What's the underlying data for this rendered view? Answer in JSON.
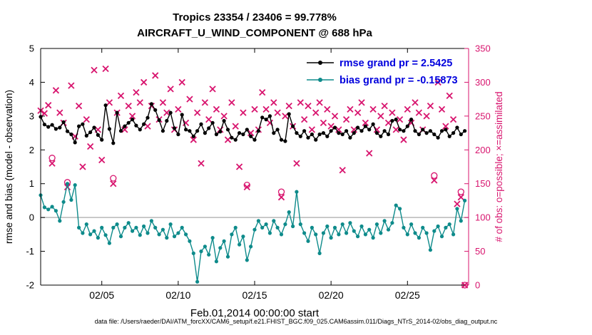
{
  "footer": {
    "caption": "data file: /Users/raeder/DAI/ATM_forcXX/CAM6_setup/f.e21.FHIST_BGC.f09_025.CAM6assim.011/Diags_NTrS_2014-02/obs_diag_output.nc"
  },
  "chart_data": {
    "type": "line",
    "title": "Tropics 23354 / 23406 = 99.778%",
    "subtitle": "AIRCRAFT_U_WIND_COMPONENT @ 688 hPa",
    "xlabel": "Feb.01,2014 00:00:00 start",
    "ylabel_left": "rmse and bias (model - observation)",
    "ylabel_right": "# of obs: o=possible; ×=assimilated",
    "xlim": [
      1,
      29
    ],
    "ylim_left": [
      -2,
      5
    ],
    "ylim_right": [
      0,
      350
    ],
    "yticks_left": [
      -2,
      -1,
      0,
      1,
      2,
      3,
      4,
      5
    ],
    "yticks_right": [
      0,
      50,
      100,
      150,
      200,
      250,
      300,
      350
    ],
    "xticks": [
      {
        "value": 5,
        "label": "02/05"
      },
      {
        "value": 10,
        "label": "02/10"
      },
      {
        "value": 15,
        "label": "02/15"
      },
      {
        "value": 20,
        "label": "02/20"
      },
      {
        "value": 25,
        "label": "02/25"
      }
    ],
    "x_start": 1,
    "x_step": 0.25,
    "n_points": 112,
    "zero_line": 0,
    "grid": false,
    "legend_position": "top-right-inside",
    "colors": {
      "rmse": "#000000",
      "bias": "#0e8b8b",
      "obs": "#d8146e",
      "zero_line": "#b8b8b8",
      "legend_text": "#0000dd",
      "axis": "#000000"
    },
    "legend": [
      {
        "series": "rmse",
        "label": "rmse grand pr = 2.5425"
      },
      {
        "series": "bias",
        "label": "bias grand pr = -0.15873"
      }
    ],
    "series": {
      "rmse": [
        2.98,
        2.75,
        2.68,
        2.74,
        2.62,
        2.66,
        2.82,
        2.55,
        2.46,
        2.22,
        2.7,
        2.76,
        2.42,
        2.52,
        2.66,
        2.44,
        2.3,
        3.32,
        2.62,
        2.2,
        3.1,
        2.56,
        2.7,
        2.8,
        2.9,
        2.72,
        2.6,
        2.76,
        2.95,
        3.36,
        3.18,
        2.88,
        2.56,
        2.86,
        3.1,
        2.64,
        2.46,
        3.04,
        2.6,
        2.56,
        2.4,
        2.56,
        2.76,
        2.5,
        2.64,
        2.8,
        2.46,
        2.54,
        2.86,
        2.6,
        2.36,
        2.3,
        2.5,
        2.46,
        2.6,
        2.4,
        2.3,
        2.56,
        2.96,
        2.9,
        3.0,
        2.5,
        2.6,
        2.3,
        2.26,
        3.06,
        2.7,
        2.5,
        2.4,
        2.56,
        2.36,
        2.46,
        2.3,
        2.46,
        2.5,
        2.4,
        2.56,
        2.66,
        2.5,
        2.46,
        2.56,
        2.36,
        2.5,
        2.66,
        2.56,
        2.7,
        2.6,
        2.76,
        2.5,
        2.4,
        2.56,
        2.46,
        2.86,
        2.9,
        2.6,
        2.56,
        2.7,
        2.9,
        2.56,
        2.46,
        2.6,
        2.5,
        2.56,
        2.46,
        2.36,
        2.56,
        2.6,
        2.4,
        2.5,
        2.66,
        2.46,
        2.56
      ],
      "bias": [
        0.66,
        0.3,
        0.24,
        0.32,
        0.2,
        -0.1,
        0.46,
        1.0,
        0.52,
        0.96,
        -0.3,
        -0.46,
        -0.2,
        -0.5,
        -0.4,
        -0.6,
        -0.3,
        -0.52,
        -0.76,
        -0.3,
        -0.2,
        -0.56,
        -0.3,
        -0.16,
        -0.4,
        -0.3,
        -0.52,
        -0.26,
        -0.46,
        -0.1,
        -0.3,
        -0.5,
        -0.36,
        -0.6,
        -0.2,
        -0.56,
        -0.46,
        -0.3,
        -0.5,
        -0.7,
        -1.06,
        -1.9,
        -1.0,
        -0.86,
        -1.1,
        -0.6,
        -1.3,
        -0.9,
        -0.7,
        -1.16,
        -0.5,
        -0.3,
        -0.8,
        -0.56,
        -1.26,
        -0.86,
        -0.36,
        -0.1,
        -0.3,
        -0.2,
        -0.46,
        -0.1,
        -0.3,
        -0.5,
        -0.2,
        0.16,
        -0.26,
        0.76,
        -0.2,
        -0.46,
        -0.7,
        -0.3,
        -0.5,
        -1.06,
        -0.46,
        -0.26,
        -0.6,
        -0.3,
        -0.5,
        -0.2,
        -0.46,
        -0.16,
        -0.4,
        -0.56,
        -0.26,
        -0.5,
        -0.36,
        -0.6,
        -0.2,
        -0.46,
        -0.1,
        -0.36,
        -0.16,
        0.36,
        0.26,
        -0.3,
        -0.5,
        -0.2,
        -0.46,
        -0.6,
        -0.3,
        -0.46,
        -0.96,
        -0.4,
        -0.26,
        -0.56,
        -0.3,
        -0.2,
        -0.5,
        0.26,
        -0.1,
        0.5
      ],
      "obs_assimilated": [
        258,
        254,
        266,
        180,
        288,
        255,
        240,
        145,
        295,
        220,
        265,
        175,
        245,
        205,
        318,
        230,
        185,
        320,
        270,
        150,
        255,
        280,
        230,
        265,
        250,
        285,
        270,
        300,
        235,
        265,
        310,
        245,
        270,
        255,
        290,
        230,
        260,
        300,
        240,
        275,
        215,
        255,
        180,
        270,
        245,
        290,
        260,
        230,
        250,
        215,
        270,
        235,
        175,
        255,
        145,
        225,
        260,
        230,
        285,
        260,
        240,
        270,
        255,
        130,
        250,
        265,
        235,
        180,
        270,
        245,
        265,
        230,
        255,
        270,
        240,
        260,
        235,
        250,
        230,
        170,
        245,
        260,
        230,
        255,
        270,
        240,
        195,
        260,
        230,
        250,
        265,
        240,
        255,
        230,
        245,
        215,
        260,
        240,
        270,
        255,
        230,
        250,
        265,
        155,
        300,
        260,
        235,
        280,
        245,
        120,
        130,
        0
      ],
      "obs_possible": [
        258,
        254,
        266,
        188,
        288,
        255,
        240,
        152,
        295,
        220,
        265,
        175,
        245,
        205,
        318,
        230,
        185,
        320,
        270,
        158,
        255,
        280,
        230,
        265,
        250,
        285,
        270,
        300,
        235,
        265,
        310,
        245,
        270,
        255,
        290,
        230,
        260,
        300,
        240,
        275,
        215,
        255,
        180,
        270,
        245,
        290,
        260,
        230,
        250,
        215,
        270,
        235,
        175,
        255,
        148,
        225,
        260,
        230,
        285,
        260,
        240,
        270,
        255,
        138,
        250,
        265,
        235,
        180,
        270,
        245,
        265,
        230,
        255,
        270,
        240,
        260,
        235,
        250,
        230,
        170,
        245,
        260,
        230,
        255,
        270,
        240,
        195,
        260,
        230,
        250,
        265,
        240,
        255,
        230,
        245,
        215,
        260,
        240,
        270,
        255,
        230,
        250,
        265,
        162,
        300,
        260,
        235,
        280,
        245,
        120,
        138,
        0
      ]
    }
  }
}
